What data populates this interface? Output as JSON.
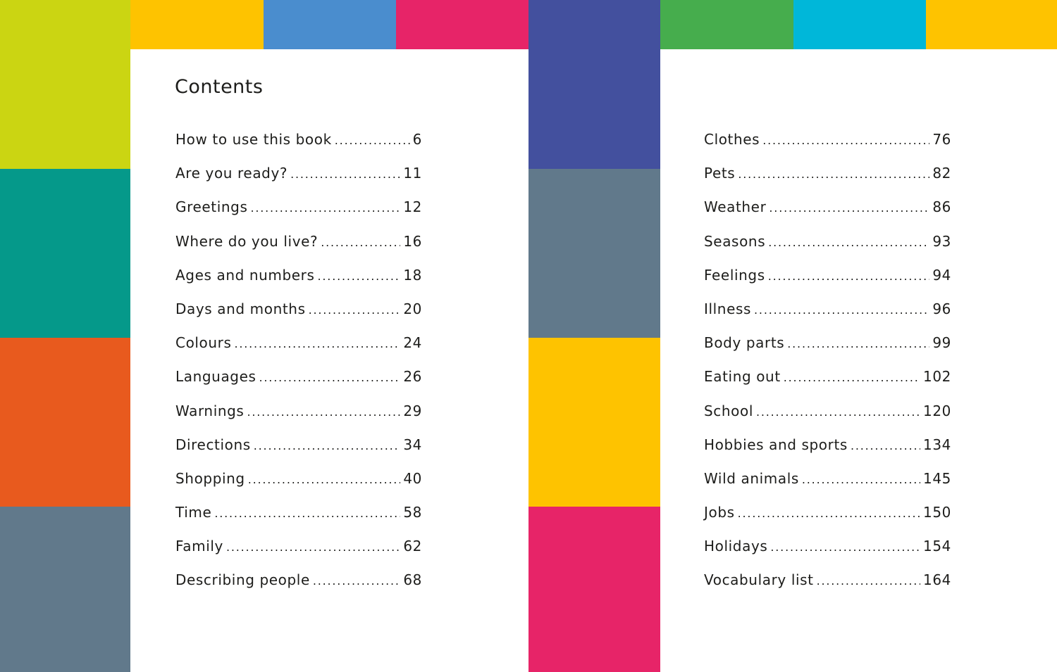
{
  "title": "Contents",
  "colors": {
    "left_column": [
      "#cbd512",
      "#05998a",
      "#e85a1e",
      "#61798b"
    ],
    "middle_column": [
      "#43509e",
      "#61798b",
      "#fec300",
      "#e72468"
    ],
    "top_left": [
      "#fec300",
      "#4a8dce",
      "#e72468"
    ],
    "top_right": [
      "#46ad4d",
      "#00b7d9",
      "#fec300"
    ]
  },
  "left_entries": [
    {
      "label": "How to use this book",
      "page": "6"
    },
    {
      "label": "Are you ready?",
      "page": "11"
    },
    {
      "label": "Greetings",
      "page": "12"
    },
    {
      "label": "Where do you live?",
      "page": "16"
    },
    {
      "label": "Ages and numbers",
      "page": "18"
    },
    {
      "label": "Days and months",
      "page": "20"
    },
    {
      "label": "Colours",
      "page": "24"
    },
    {
      "label": "Languages",
      "page": "26"
    },
    {
      "label": "Warnings",
      "page": "29"
    },
    {
      "label": "Directions",
      "page": "34"
    },
    {
      "label": "Shopping",
      "page": "40"
    },
    {
      "label": "Time",
      "page": "58"
    },
    {
      "label": "Family",
      "page": "62"
    },
    {
      "label": "Describing people",
      "page": "68"
    }
  ],
  "right_entries": [
    {
      "label": "Clothes",
      "page": "76"
    },
    {
      "label": "Pets",
      "page": "82"
    },
    {
      "label": "Weather",
      "page": "86"
    },
    {
      "label": "Seasons",
      "page": "93"
    },
    {
      "label": "Feelings",
      "page": "94"
    },
    {
      "label": "Illness",
      "page": "96"
    },
    {
      "label": "Body parts",
      "page": "99"
    },
    {
      "label": "Eating out",
      "page": "102"
    },
    {
      "label": "School",
      "page": "120"
    },
    {
      "label": "Hobbies and sports",
      "page": "134"
    },
    {
      "label": "Wild animals",
      "page": "145"
    },
    {
      "label": "Jobs",
      "page": "150"
    },
    {
      "label": "Holidays",
      "page": "154"
    },
    {
      "label": "Vocabulary list",
      "page": "164"
    }
  ]
}
